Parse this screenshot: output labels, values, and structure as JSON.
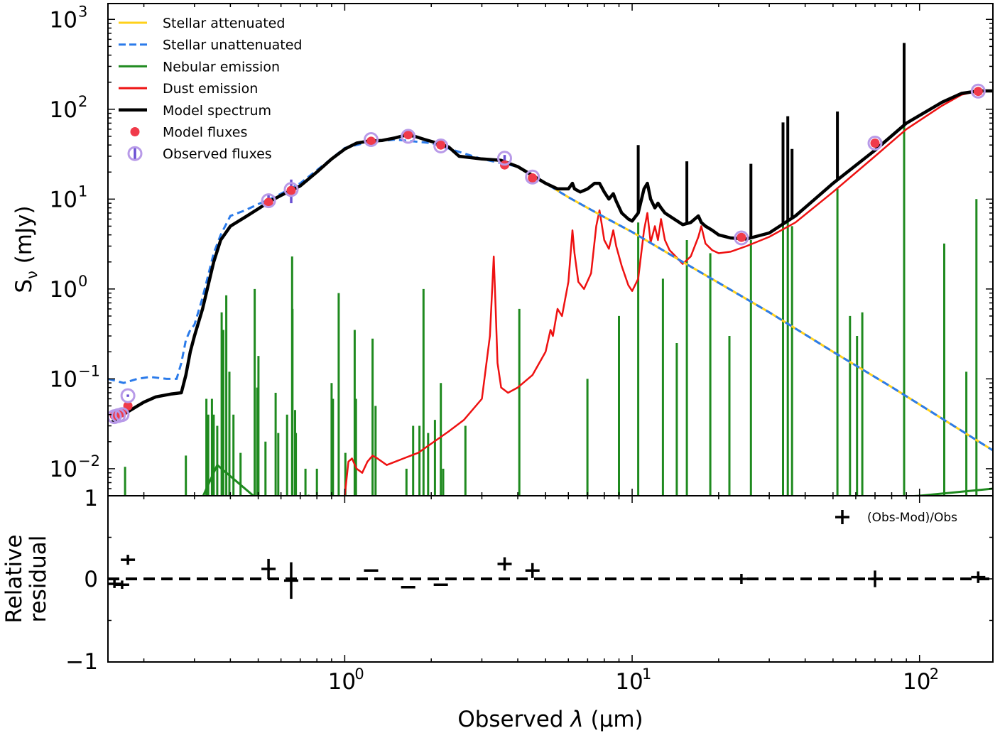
{
  "chart_data": [
    {
      "type": "line",
      "panel": "SED",
      "x_scale": "log",
      "y_scale": "log",
      "xlim": [
        0.15,
        180
      ],
      "ylim": [
        0.005,
        1500
      ],
      "ylabel": "Sν (mJy)",
      "ylabel_main": "S",
      "ylabel_sub": "ν",
      "ylabel_rest": " (mJy)",
      "yticks": [
        {
          "value": 0.01,
          "base": "10",
          "exp": "−2"
        },
        {
          "value": 0.1,
          "base": "10",
          "exp": "−1"
        },
        {
          "value": 1,
          "base": "10",
          "exp": "0"
        },
        {
          "value": 10,
          "base": "10",
          "exp": "1"
        },
        {
          "value": 100,
          "base": "10",
          "exp": "2"
        },
        {
          "value": 1000,
          "base": "10",
          "exp": "3"
        }
      ],
      "legend_position": "top-left",
      "legend": [
        {
          "label": "Stellar attenuated",
          "kind": "line",
          "color": "#FFD11A"
        },
        {
          "label": "Stellar unattenuated",
          "kind": "dashed",
          "color": "#2B7BEA"
        },
        {
          "label": "Nebular emission",
          "kind": "line",
          "color": "#1F8A1F"
        },
        {
          "label": "Dust emission",
          "kind": "line",
          "color": "#EE1111"
        },
        {
          "label": "Model spectrum",
          "kind": "thick",
          "color": "#000000"
        },
        {
          "label": "Model fluxes",
          "kind": "dot",
          "color": "#F03A4A"
        },
        {
          "label": "Observed fluxes",
          "kind": "circle",
          "color": "#B89AE8"
        }
      ],
      "series": [
        {
          "name": "Stellar attenuated",
          "color": "#FFD11A",
          "x": [
            0.155,
            0.165,
            0.18,
            0.2,
            0.22,
            0.25,
            0.27,
            0.28,
            0.29,
            0.3,
            0.32,
            0.35,
            0.37,
            0.4,
            0.42,
            0.45,
            0.5,
            0.55,
            0.6,
            0.65,
            0.7,
            0.8,
            0.9,
            1.0,
            1.1,
            1.2,
            1.35,
            1.5,
            1.65,
            1.75,
            1.9,
            2.1,
            2.2,
            2.3,
            2.5,
            3.0,
            3.5,
            4.0,
            5.0,
            6.0,
            8.0,
            10,
            15,
            20,
            30,
            50,
            80,
            120,
            180
          ],
          "y": [
            0.033,
            0.038,
            0.045,
            0.055,
            0.063,
            0.068,
            0.07,
            0.11,
            0.2,
            0.3,
            0.6,
            2.0,
            3.5,
            5.0,
            5.5,
            6.3,
            7.8,
            9.5,
            11,
            12.5,
            14,
            20,
            28,
            36,
            42,
            44,
            45,
            48,
            52,
            50,
            46,
            42,
            40,
            38,
            30,
            28,
            27,
            23,
            15,
            10.5,
            6.3,
            4.3,
            2.0,
            1.17,
            0.55,
            0.2,
            0.081,
            0.036,
            0.016
          ]
        },
        {
          "name": "Stellar unattenuated",
          "color": "#2B7BEA",
          "x": [
            0.15,
            0.16,
            0.17,
            0.19,
            0.21,
            0.24,
            0.26,
            0.27,
            0.28,
            0.29,
            0.3,
            0.32,
            0.35,
            0.37,
            0.4,
            0.45,
            0.5,
            0.55,
            0.6,
            0.7,
            0.8,
            1.0,
            1.2,
            1.5,
            2.0,
            3.0,
            4.0,
            5.0,
            6.0,
            8.0,
            10,
            15,
            20,
            30,
            50,
            80,
            120,
            180
          ],
          "y": [
            0.1,
            0.095,
            0.09,
            0.1,
            0.105,
            0.1,
            0.1,
            0.15,
            0.27,
            0.35,
            0.4,
            0.8,
            2.5,
            4.0,
            6.5,
            7.5,
            8.8,
            10,
            11.5,
            15,
            21,
            37,
            43,
            46,
            42,
            28,
            23,
            15,
            10.5,
            6.3,
            4.3,
            2.0,
            1.17,
            0.55,
            0.2,
            0.081,
            0.036,
            0.016
          ]
        },
        {
          "name": "Dust emission",
          "color": "#EE1111",
          "x": [
            1.0,
            1.03,
            1.06,
            1.1,
            1.15,
            1.2,
            1.25,
            1.3,
            1.4,
            1.5,
            1.6,
            1.7,
            1.8,
            2.0,
            2.3,
            2.6,
            3.0,
            3.2,
            3.3,
            3.35,
            3.4,
            3.5,
            3.7,
            4.0,
            4.5,
            5.0,
            5.2,
            5.3,
            5.5,
            5.7,
            6.0,
            6.2,
            6.3,
            6.5,
            6.8,
            7.2,
            7.5,
            7.7,
            8.0,
            8.3,
            8.6,
            8.8,
            9.2,
            9.7,
            10.0,
            10.5,
            11.0,
            11.3,
            11.6,
            12.0,
            12.3,
            12.6,
            13.0,
            13.5,
            14.0,
            15.0,
            16.0,
            17.0,
            17.4,
            18.0,
            19.0,
            20.0,
            22.0,
            25.0,
            30.0,
            37.0,
            50.0,
            70.0,
            90.0,
            120.0,
            140.0,
            160.0,
            180.0
          ],
          "y": [
            0.005,
            0.012,
            0.013,
            0.01,
            0.009,
            0.012,
            0.014,
            0.013,
            0.011,
            0.012,
            0.013,
            0.014,
            0.015,
            0.019,
            0.026,
            0.035,
            0.06,
            0.3,
            2.3,
            0.6,
            0.15,
            0.08,
            0.07,
            0.08,
            0.11,
            0.2,
            0.35,
            0.3,
            0.6,
            0.5,
            1.2,
            4.5,
            2.5,
            1.2,
            1.0,
            1.5,
            5.0,
            7.5,
            3.5,
            2.8,
            4.5,
            3.0,
            1.8,
            1.1,
            0.95,
            1.3,
            4.5,
            7.0,
            3.3,
            5.0,
            3.5,
            6.0,
            3.5,
            2.7,
            2.4,
            1.9,
            2.3,
            3.8,
            5.0,
            3.2,
            2.7,
            2.5,
            2.6,
            3.0,
            3.8,
            5.5,
            12,
            30,
            60,
            110,
            145,
            160,
            160
          ]
        },
        {
          "name": "Model spectrum",
          "color": "#000000",
          "x": [
            0.155,
            0.165,
            0.18,
            0.2,
            0.22,
            0.25,
            0.27,
            0.28,
            0.29,
            0.3,
            0.32,
            0.35,
            0.37,
            0.4,
            0.42,
            0.45,
            0.5,
            0.55,
            0.6,
            0.65,
            0.7,
            0.8,
            0.9,
            1.0,
            1.1,
            1.2,
            1.35,
            1.5,
            1.65,
            1.75,
            1.9,
            2.1,
            2.2,
            2.3,
            2.5,
            3.0,
            3.5,
            4.0,
            5.0,
            5.5,
            6.0,
            6.2,
            6.3,
            6.6,
            7.0,
            7.4,
            7.7,
            8.0,
            8.3,
            8.6,
            8.8,
            9.2,
            9.7,
            10.0,
            10.5,
            11.0,
            11.3,
            11.6,
            12.0,
            12.3,
            12.6,
            13.0,
            14.0,
            15.0,
            16.0,
            17.0,
            17.4,
            18.0,
            19.0,
            20.0,
            22.0,
            25.0,
            30.0,
            37.0,
            50.0,
            70.0,
            90.0,
            120.0,
            140.0,
            160.0,
            180.0
          ],
          "y": [
            0.033,
            0.038,
            0.045,
            0.055,
            0.063,
            0.068,
            0.07,
            0.11,
            0.2,
            0.3,
            0.6,
            2.0,
            3.5,
            5.0,
            5.5,
            6.3,
            7.8,
            9.5,
            11,
            12.5,
            14,
            20,
            28,
            36,
            42,
            44,
            45,
            48,
            52,
            50,
            46,
            42,
            40,
            38,
            30,
            28,
            27,
            23,
            15,
            13,
            13,
            15,
            13,
            12,
            13,
            15,
            15,
            12,
            10,
            11.5,
            9.5,
            7.0,
            6.0,
            5.7,
            7,
            13,
            15,
            10,
            8,
            9,
            8,
            7,
            6,
            5.2,
            5.5,
            6.5,
            5.5,
            5.0,
            4.5,
            4.0,
            3.7,
            3.6,
            4.2,
            6.5,
            15,
            35,
            70,
            120,
            150,
            160,
            160
          ]
        },
        {
          "name": "Nebular emission",
          "color": "#1F8A1F",
          "continuum": {
            "x": [
              0.3,
              0.33,
              0.36,
              0.5,
              0.65,
              0.7,
              0.75,
              0.9,
              1.0,
              3.0,
              10,
              30,
              60,
              100,
              180
            ],
            "y": [
              0.003,
              0.006,
              0.011,
              0.0045,
              0.0045,
              0.0048,
              0.005,
              0.0035,
              0.003,
              0.003,
              0.0035,
              0.004,
              0.0045,
              0.005,
              0.006
            ]
          },
          "lines": [
            {
              "x": 0.172,
              "y": 0.0105
            },
            {
              "x": 0.28,
              "y": 0.014
            },
            {
              "x": 0.33,
              "y": 0.06
            },
            {
              "x": 0.335,
              "y": 0.04
            },
            {
              "x": 0.345,
              "y": 0.06
            },
            {
              "x": 0.35,
              "y": 0.04
            },
            {
              "x": 0.36,
              "y": 0.03
            },
            {
              "x": 0.373,
              "y": 0.55
            },
            {
              "x": 0.376,
              "y": 0.07
            },
            {
              "x": 0.378,
              "y": 0.35
            },
            {
              "x": 0.387,
              "y": 0.85
            },
            {
              "x": 0.397,
              "y": 0.12
            },
            {
              "x": 0.41,
              "y": 0.04
            },
            {
              "x": 0.434,
              "y": 0.015
            },
            {
              "x": 0.486,
              "y": 1.0
            },
            {
              "x": 0.496,
              "y": 0.08
            },
            {
              "x": 0.501,
              "y": 0.18
            },
            {
              "x": 0.53,
              "y": 0.02
            },
            {
              "x": 0.575,
              "y": 0.07
            },
            {
              "x": 0.587,
              "y": 0.025
            },
            {
              "x": 0.63,
              "y": 0.04
            },
            {
              "x": 0.656,
              "y": 2.3
            },
            {
              "x": 0.658,
              "y": 0.6
            },
            {
              "x": 0.672,
              "y": 0.045
            },
            {
              "x": 0.676,
              "y": 0.025
            },
            {
              "x": 0.73,
              "y": 0.01
            },
            {
              "x": 0.8,
              "y": 0.01
            },
            {
              "x": 0.9,
              "y": 0.09
            },
            {
              "x": 0.91,
              "y": 0.06
            },
            {
              "x": 0.953,
              "y": 0.9
            },
            {
              "x": 1.005,
              "y": 0.015
            },
            {
              "x": 1.083,
              "y": 0.35
            },
            {
              "x": 1.094,
              "y": 0.06
            },
            {
              "x": 1.25,
              "y": 0.28
            },
            {
              "x": 1.28,
              "y": 0.05
            },
            {
              "x": 1.64,
              "y": 0.01
            },
            {
              "x": 1.73,
              "y": 0.03
            },
            {
              "x": 1.82,
              "y": 0.03
            },
            {
              "x": 1.88,
              "y": 1.0
            },
            {
              "x": 1.95,
              "y": 0.025
            },
            {
              "x": 2.06,
              "y": 0.035
            },
            {
              "x": 2.16,
              "y": 0.09
            },
            {
              "x": 2.2,
              "y": 0.01
            },
            {
              "x": 2.63,
              "y": 0.03
            },
            {
              "x": 4.05,
              "y": 0.6
            },
            {
              "x": 6.99,
              "y": 0.1
            },
            {
              "x": 9.0,
              "y": 0.5
            },
            {
              "x": 10.5,
              "y": 5.5
            },
            {
              "x": 12.8,
              "y": 1.3
            },
            {
              "x": 14.3,
              "y": 0.25
            },
            {
              "x": 15.5,
              "y": 3.5
            },
            {
              "x": 18.7,
              "y": 2.5
            },
            {
              "x": 21.8,
              "y": 0.3
            },
            {
              "x": 25.9,
              "y": 3.5
            },
            {
              "x": 33.5,
              "y": 11
            },
            {
              "x": 34.8,
              "y": 13
            },
            {
              "x": 36.0,
              "y": 5.0
            },
            {
              "x": 51.8,
              "y": 13
            },
            {
              "x": 57.3,
              "y": 0.5
            },
            {
              "x": 60.6,
              "y": 0.3
            },
            {
              "x": 63.2,
              "y": 0.55
            },
            {
              "x": 88.4,
              "y": 80
            },
            {
              "x": 121.9,
              "y": 3.2
            },
            {
              "x": 145.5,
              "y": 0.12
            },
            {
              "x": 157.7,
              "y": 10
            }
          ]
        }
      ],
      "model_fluxes": {
        "color": "#F03A4A",
        "x": [
          0.158,
          0.163,
          0.168,
          0.176,
          0.543,
          0.651,
          1.235,
          1.662,
          2.159,
          3.6,
          4.5,
          24.0,
          70.0,
          160.0
        ],
        "y": [
          0.039,
          0.04,
          0.042,
          0.05,
          9.2,
          12.5,
          44,
          52,
          40,
          24,
          17.2,
          3.75,
          42,
          158
        ]
      },
      "observed_fluxes": {
        "color": "#B89AE8",
        "x": [
          0.158,
          0.163,
          0.168,
          0.176,
          0.543,
          0.651,
          1.235,
          1.662,
          2.159,
          3.6,
          4.5,
          24.0,
          70.0,
          160.0
        ],
        "y": [
          0.038,
          0.039,
          0.04,
          0.065,
          9.6,
          12.8,
          46,
          50,
          39,
          28.5,
          17.6,
          3.7,
          42,
          159
        ],
        "err_lo": [
          0.037,
          0.038,
          0.039,
          0.063,
          8.0,
          9.0,
          45,
          49,
          38.5,
          26,
          16.8,
          3.6,
          40,
          152
        ],
        "err_hi": [
          0.039,
          0.04,
          0.041,
          0.067,
          11.5,
          16.5,
          47,
          51,
          39.5,
          31,
          18.4,
          3.8,
          44,
          166
        ]
      }
    },
    {
      "type": "scatter",
      "panel": "residual",
      "x_scale": "log",
      "xlim": [
        0.15,
        180
      ],
      "ylim": [
        -1,
        1
      ],
      "xlabel": "Observed λ (μm)",
      "xlabel_main": "Observed ",
      "xlabel_lambda": "λ",
      "xlabel_units": " (μm)",
      "ylabel_line1": "Relative",
      "ylabel_line2": "residual",
      "xticks": [
        {
          "value": 1,
          "base": "10",
          "exp": "0"
        },
        {
          "value": 10,
          "base": "10",
          "exp": "1"
        },
        {
          "value": 100,
          "base": "10",
          "exp": "2"
        }
      ],
      "yticks": [
        {
          "value": 1,
          "label": "1"
        },
        {
          "value": 0,
          "label": "0"
        },
        {
          "value": -1,
          "label": "−1"
        }
      ],
      "legend_label": "(Obs-Mod)/Obs",
      "legend_position": "top-right",
      "points": {
        "x": [
          0.158,
          0.168,
          0.176,
          0.543,
          0.651,
          1.235,
          1.662,
          2.159,
          3.6,
          4.5,
          24.0,
          70.0,
          160.0
        ],
        "y": [
          -0.06,
          -0.07,
          0.23,
          0.12,
          -0.02,
          0.1,
          -0.1,
          -0.07,
          0.18,
          0.1,
          0.0,
          0.0,
          0.02
        ],
        "yerr": [
          0.05,
          0.05,
          0.06,
          0.12,
          0.22,
          0.0,
          0.0,
          0.0,
          0.08,
          0.09,
          0.06,
          0.1,
          0.07
        ]
      }
    }
  ]
}
